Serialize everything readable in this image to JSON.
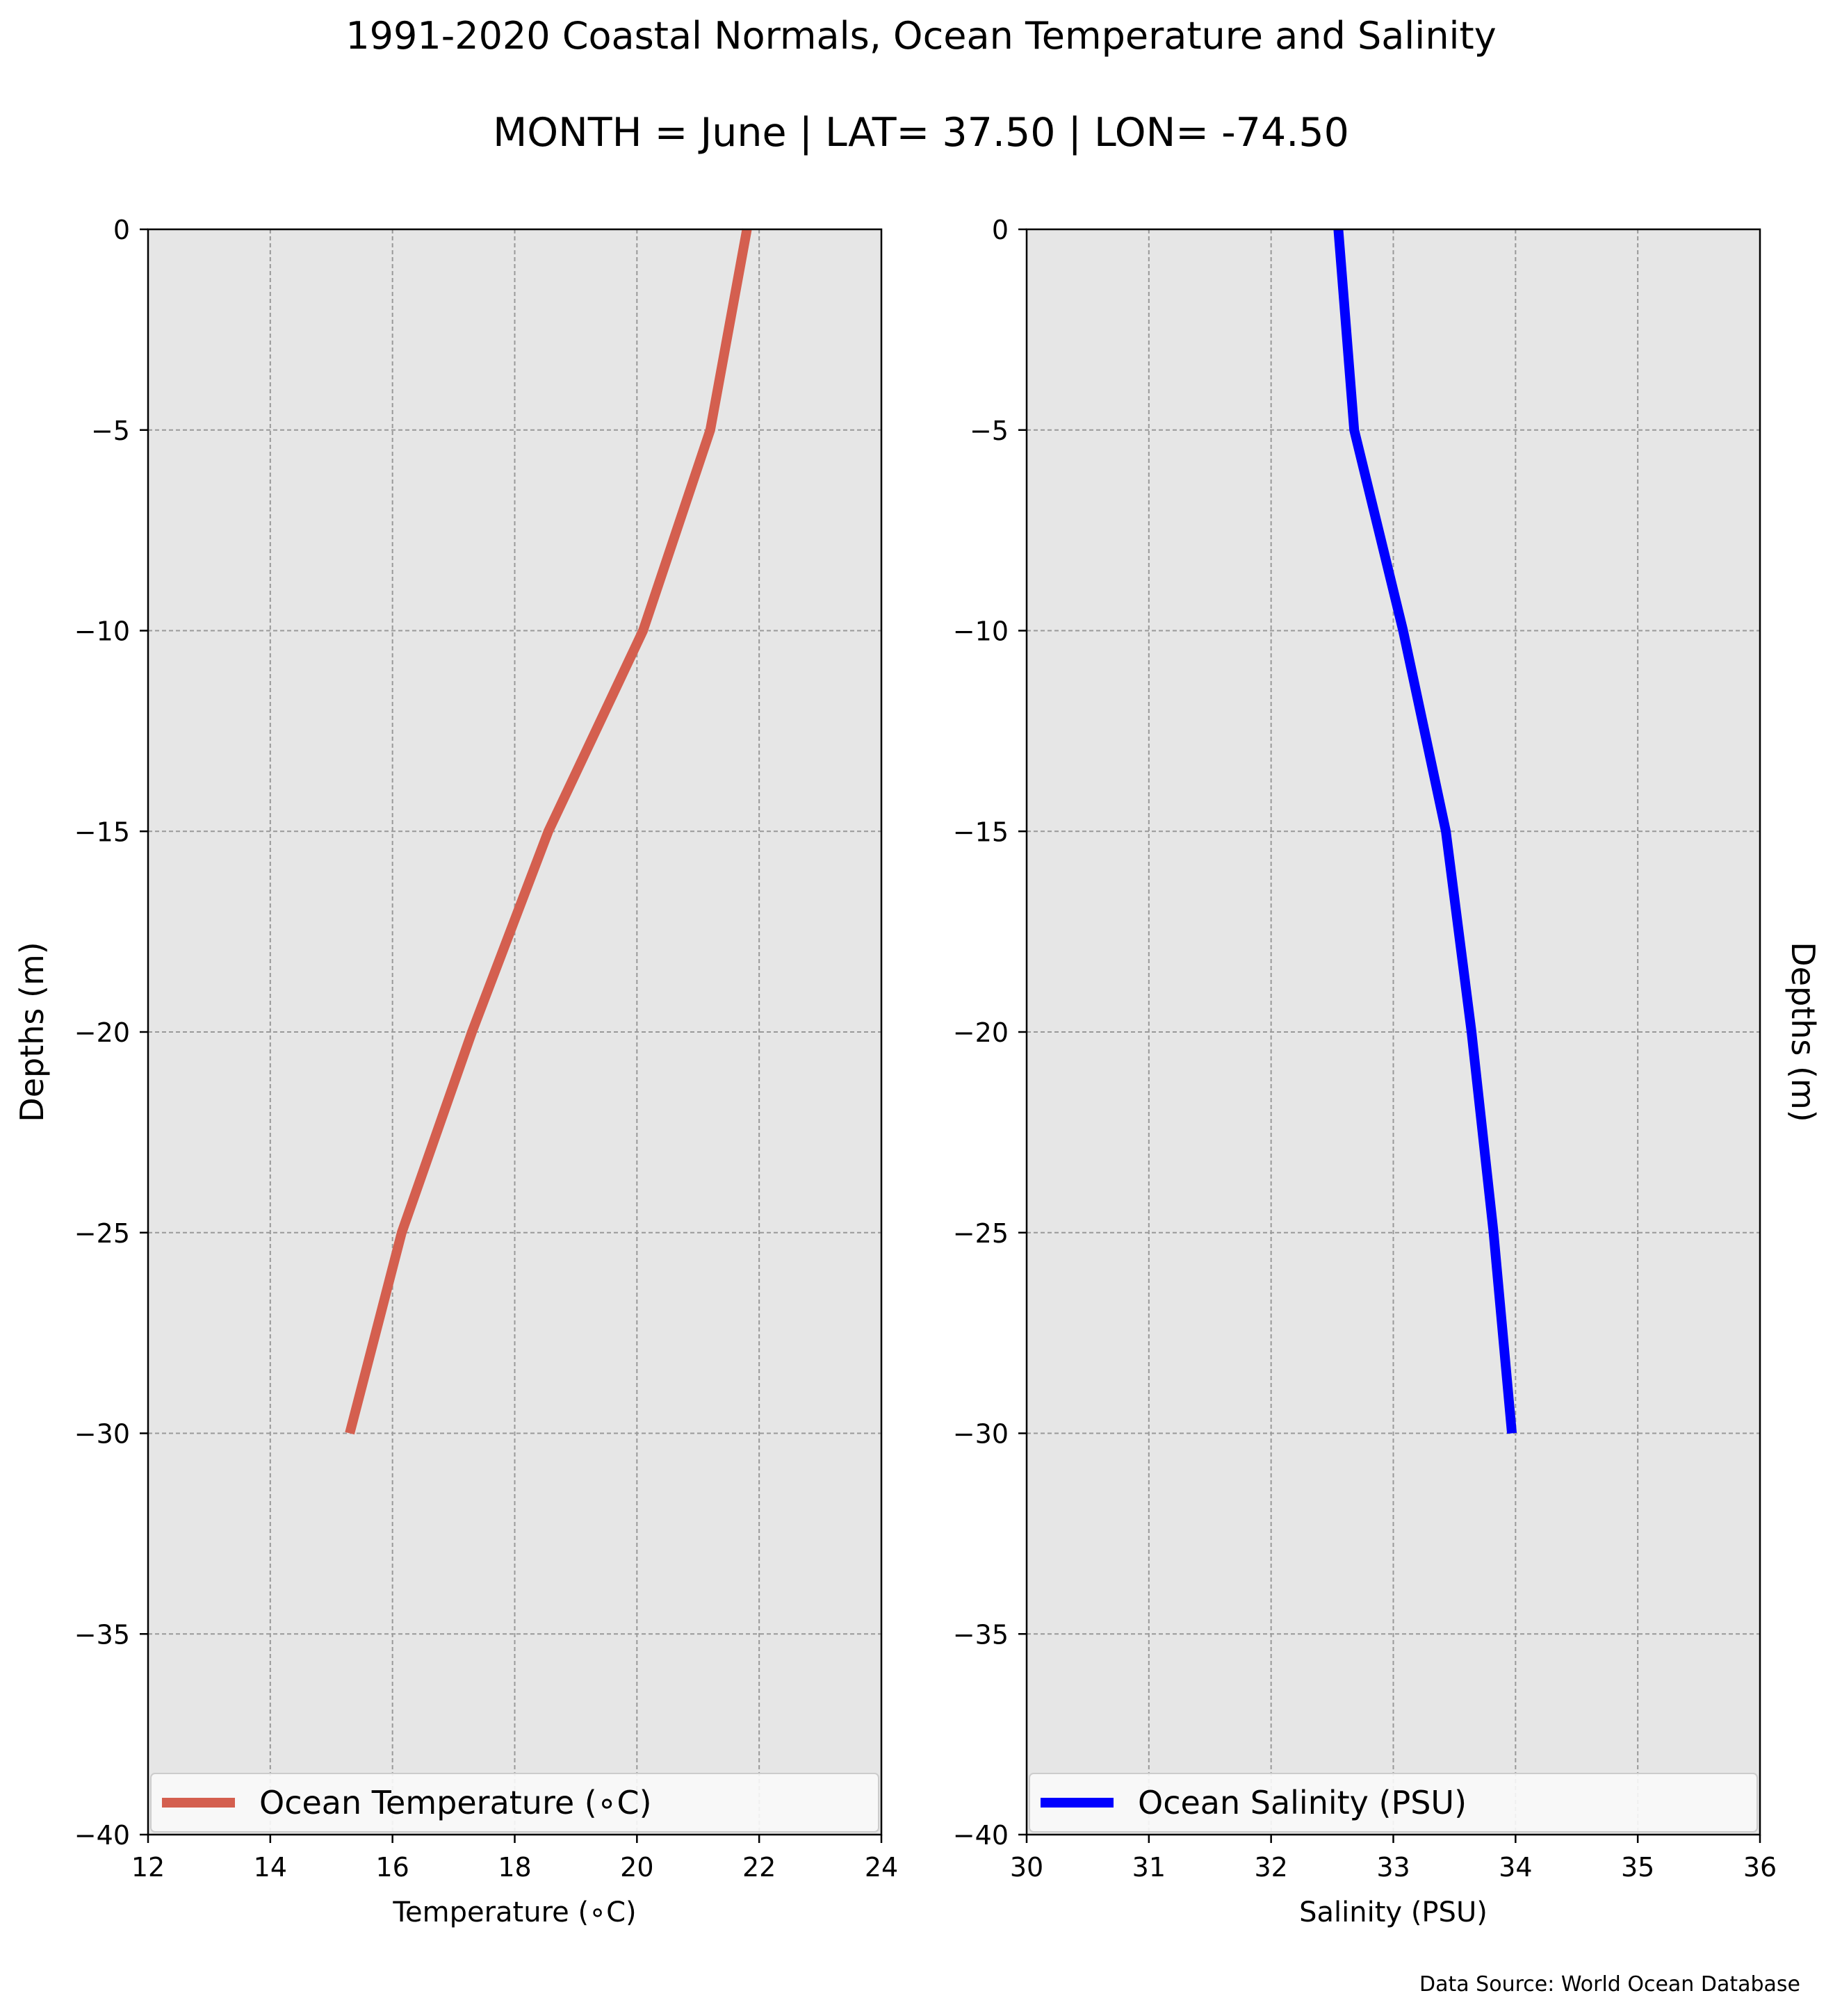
{
  "figure": {
    "title": "1991-2020 Coastal Normals, Ocean Temperature and Salinity",
    "subtitle": "MONTH = June | LAT= 37.50 | LON= -74.50",
    "source": "Data Source: World Ocean Database",
    "background": "#e6e6e6",
    "grid_color": "#999999"
  },
  "chart_data": [
    {
      "type": "line",
      "xlabel": "Temperature ($^\\circ$C)",
      "xlabel_display": "Temperature (∘C)",
      "ylabel": "Depths (m)",
      "ylabel_side": "left",
      "xlim": [
        12,
        24
      ],
      "ylim": [
        -40,
        0
      ],
      "xticks": [
        "12",
        "14",
        "16",
        "18",
        "20",
        "22",
        "24"
      ],
      "yticks": [
        "0",
        "−5",
        "−10",
        "−15",
        "−20",
        "−25",
        "−30",
        "−35",
        "−40"
      ],
      "ytick_values": [
        0,
        -5,
        -10,
        -15,
        -20,
        -25,
        -30,
        -35,
        -40
      ],
      "xtick_values": [
        12,
        14,
        16,
        18,
        20,
        22,
        24
      ],
      "grid": true,
      "legend_position": "bottom",
      "series": [
        {
          "name": "Ocean Temperature (∘C)",
          "color": "#d45f4f",
          "x": [
            21.8,
            21.2,
            20.1,
            18.55,
            17.3,
            16.15,
            15.3
          ],
          "y": [
            0,
            -5,
            -10,
            -15,
            -20,
            -25,
            -30
          ]
        }
      ]
    },
    {
      "type": "line",
      "xlabel": "Salinity (PSU)",
      "ylabel": "Depths (m)",
      "ylabel_side": "right",
      "xlim": [
        30,
        36
      ],
      "ylim": [
        -40,
        0
      ],
      "xticks": [
        "30",
        "31",
        "32",
        "33",
        "34",
        "35",
        "36"
      ],
      "xtick_values": [
        30,
        31,
        32,
        33,
        34,
        35,
        36
      ],
      "yticks": [
        "0",
        "−5",
        "−10",
        "−15",
        "−20",
        "−25",
        "−30",
        "−35",
        "−40"
      ],
      "ytick_values": [
        0,
        -5,
        -10,
        -15,
        -20,
        -25,
        -30,
        -35,
        -40
      ],
      "grid": true,
      "legend_position": "bottom",
      "series": [
        {
          "name": "Ocean Salinity (PSU)",
          "color": "#0000ff",
          "x": [
            32.55,
            32.68,
            33.08,
            33.43,
            33.64,
            33.82,
            33.97
          ],
          "y": [
            0,
            -5,
            -10,
            -15,
            -20,
            -25,
            -30
          ]
        }
      ]
    }
  ]
}
